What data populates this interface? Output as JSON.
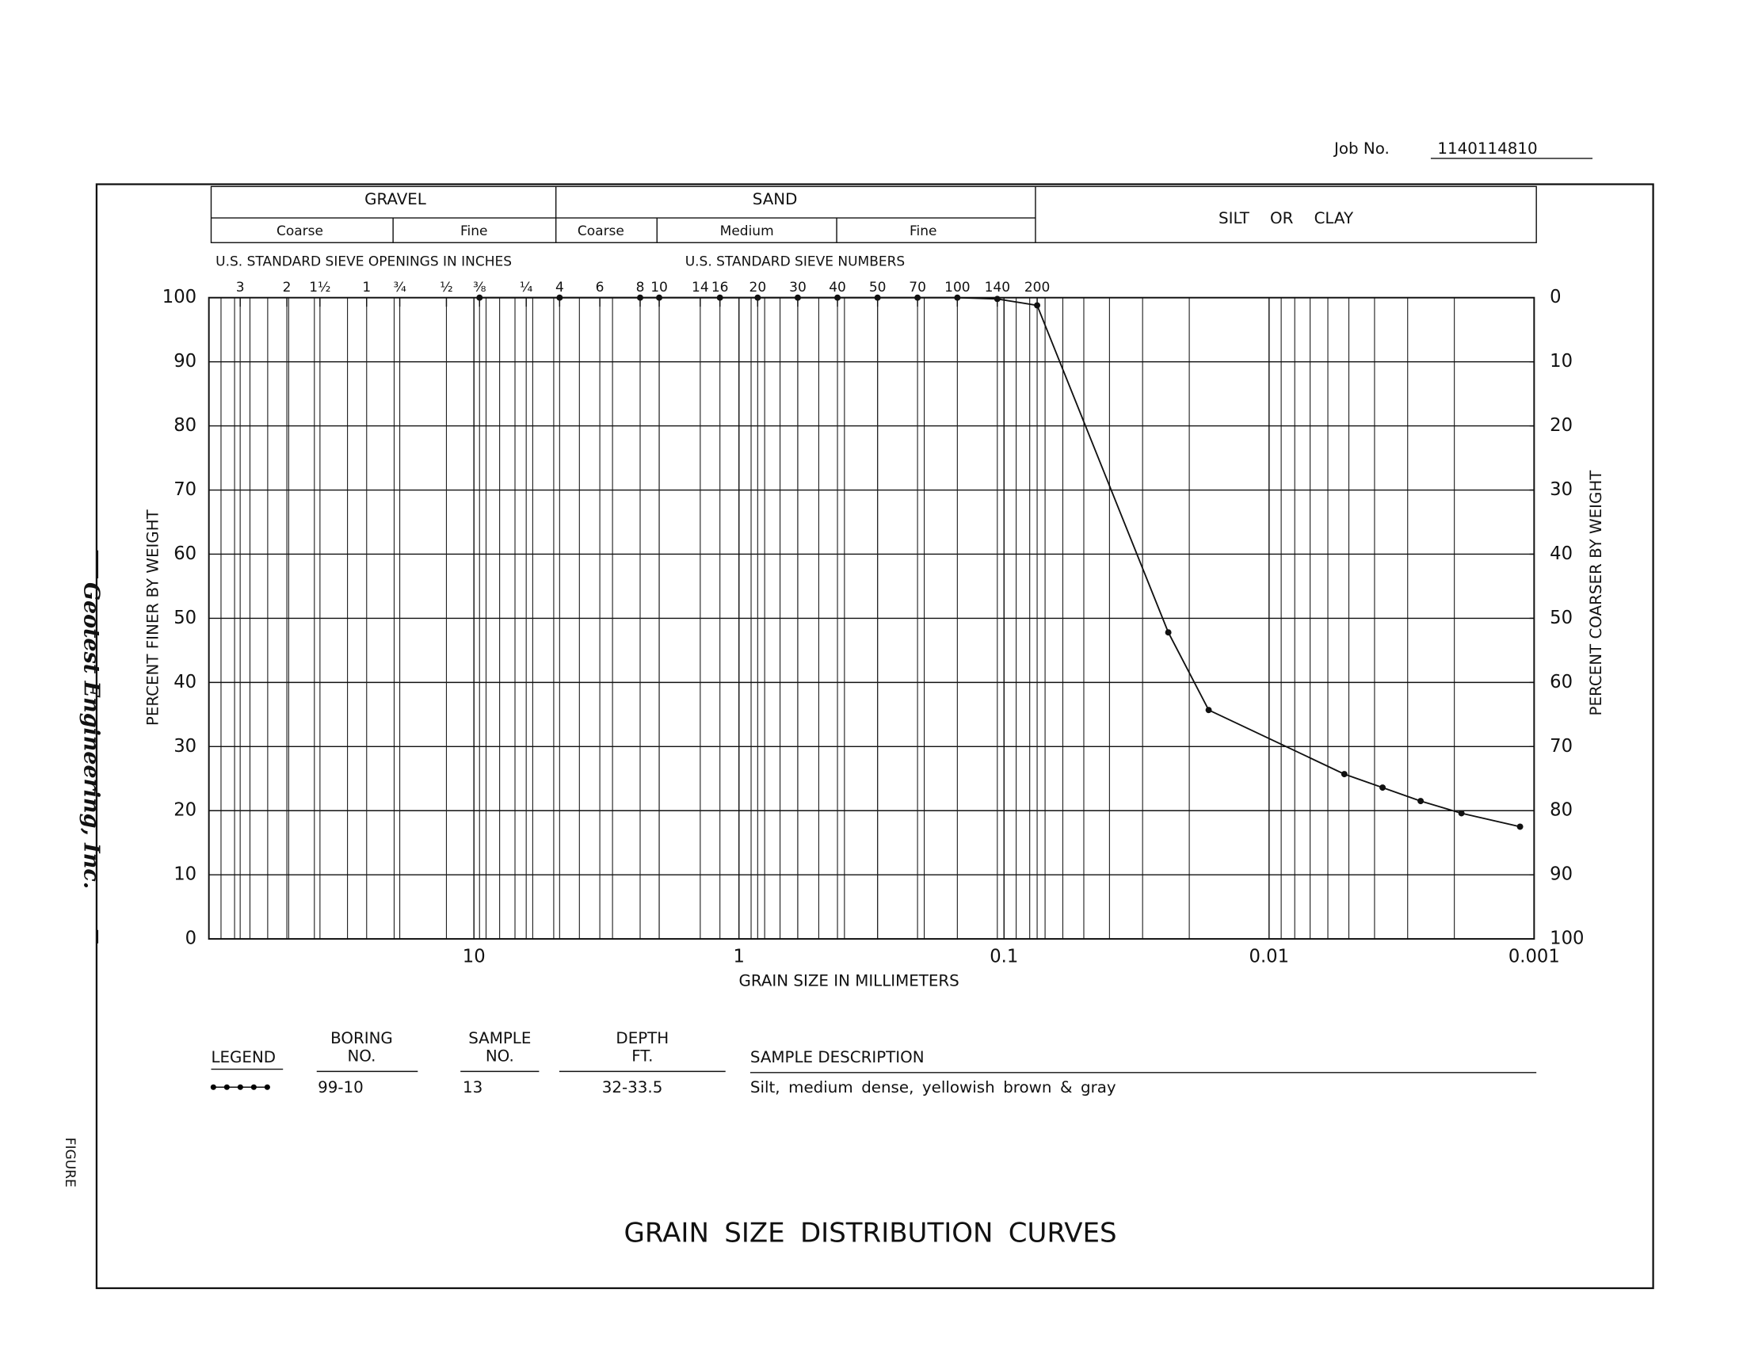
{
  "job_label": "Job No.",
  "job_number": "1140114810",
  "header": {
    "gravel": "GRAVEL",
    "gravel_coarse": "Coarse",
    "gravel_fine": "Fine",
    "sand": "SAND",
    "sand_coarse": "Coarse",
    "sand_medium": "Medium",
    "sand_fine": "Fine",
    "silt_clay": "SILT OR CLAY"
  },
  "company": "Geotest Engineering, Inc.",
  "figure_label": "FIGURE",
  "chart_data": {
    "type": "line",
    "title": "GRAIN SIZE DISTRIBUTION CURVES",
    "x_label": "GRAIN SIZE IN MILLIMETERS",
    "y_label": "PERCENT FINER BY WEIGHT",
    "y2_label": "PERCENT COARSER BY WEIGHT",
    "xscale": "log",
    "xlim": [
      100,
      0.001
    ],
    "xticks": [
      10,
      1,
      0.1,
      0.01,
      0.001
    ],
    "ylim": [
      0,
      100
    ],
    "yticks": [
      0,
      10,
      20,
      30,
      40,
      50,
      60,
      70,
      80,
      90,
      100
    ],
    "y2lim": [
      100,
      0
    ],
    "y2ticks": [
      0,
      10,
      20,
      30,
      40,
      50,
      60,
      70,
      80,
      90,
      100
    ],
    "grid": true,
    "minor_grid": true,
    "color": "#111111",
    "x": [
      9.525,
      4.75,
      2.36,
      2.0,
      1.18,
      0.85,
      0.6,
      0.425,
      0.3,
      0.212,
      0.15,
      0.106,
      0.075,
      0.024,
      0.0169,
      0.0052,
      0.00373,
      0.00268,
      0.00188,
      0.00113
    ],
    "values": [
      100,
      100,
      100,
      100,
      100,
      100,
      100,
      100,
      100,
      100,
      100,
      99.8,
      98.8,
      47.8,
      35.7,
      25.7,
      23.6,
      21.5,
      19.6,
      17.5
    ],
    "sieve_openings_title": "U.S. STANDARD SIEVE OPENINGS IN INCHES",
    "sieve_openings": [
      {
        "value": 76.2,
        "label": "3"
      },
      {
        "value": 50.8,
        "label": "2"
      },
      {
        "value": 38.1,
        "label": "1½"
      },
      {
        "value": 25.4,
        "label": "1"
      },
      {
        "value": 19.05,
        "label": "¾"
      },
      {
        "value": 12.7,
        "label": "½"
      },
      {
        "value": 9.525,
        "label": "⅜"
      },
      {
        "value": 6.35,
        "label": "¼"
      }
    ],
    "sieve_numbers_title": "U.S. STANDARD SIEVE NUMBERS",
    "sieve_numbers": [
      {
        "value": 4.75,
        "label": "4"
      },
      {
        "value": 3.35,
        "label": "6"
      },
      {
        "value": 2.36,
        "label": "8"
      },
      {
        "value": 2.0,
        "label": "10"
      },
      {
        "value": 1.4,
        "label": "14"
      },
      {
        "value": 1.18,
        "label": "16"
      },
      {
        "value": 0.85,
        "label": "20"
      },
      {
        "value": 0.6,
        "label": "30"
      },
      {
        "value": 0.425,
        "label": "40"
      },
      {
        "value": 0.3,
        "label": "50"
      },
      {
        "value": 0.212,
        "label": "70"
      },
      {
        "value": 0.15,
        "label": "100"
      },
      {
        "value": 0.106,
        "label": "140"
      },
      {
        "value": 0.075,
        "label": "200"
      }
    ]
  },
  "legend_table": {
    "legend": "LEGEND",
    "boring": [
      "BORING",
      "NO."
    ],
    "sample": [
      "SAMPLE",
      "NO."
    ],
    "depth": [
      "DEPTH",
      "FT."
    ],
    "description": "SAMPLE DESCRIPTION",
    "row": {
      "boring": "99-10",
      "sample": "13",
      "depth": "32-33.5",
      "description": "Silt, medium dense, yellowish brown & gray"
    }
  }
}
